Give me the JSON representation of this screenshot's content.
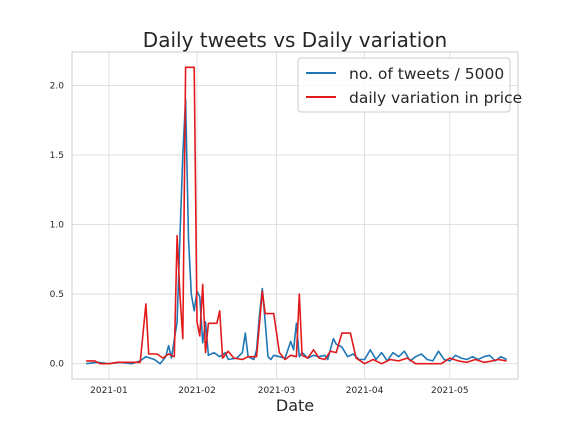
{
  "chart_data": {
    "type": "line",
    "title": "Daily tweets vs Daily variation",
    "xlabel": "Date",
    "ylabel": "",
    "x_tick_labels": [
      "2021-01",
      "2021-02",
      "2021-03",
      "2021-04",
      "2021-05"
    ],
    "x_tick_dates": [
      "2021-01-01",
      "2021-02-01",
      "2021-03-01",
      "2021-04-01",
      "2021-05-01"
    ],
    "y_tick_values": [
      0.0,
      0.5,
      1.0,
      1.5,
      2.0
    ],
    "y_tick_labels": [
      "0.0",
      "0.5",
      "1.0",
      "1.5",
      "2.0"
    ],
    "xlim": [
      "2020-12-19",
      "2021-05-25"
    ],
    "ylim": [
      -0.11,
      2.24
    ],
    "grid": true,
    "legend_position": "top-right",
    "series": [
      {
        "name": "no. of tweets / 5000",
        "color": "#1f77b4",
        "points": [
          [
            "2020-12-24",
            0.0
          ],
          [
            "2020-12-28",
            0.01
          ],
          [
            "2021-01-01",
            0.0
          ],
          [
            "2021-01-05",
            0.01
          ],
          [
            "2021-01-09",
            0.0
          ],
          [
            "2021-01-12",
            0.02
          ],
          [
            "2021-01-14",
            0.05
          ],
          [
            "2021-01-17",
            0.03
          ],
          [
            "2021-01-19",
            0.0
          ],
          [
            "2021-01-21",
            0.05
          ],
          [
            "2021-01-22",
            0.13
          ],
          [
            "2021-01-23",
            0.04
          ],
          [
            "2021-01-25",
            0.3
          ],
          [
            "2021-01-26",
            0.9
          ],
          [
            "2021-01-27",
            1.5
          ],
          [
            "2021-01-28",
            1.9
          ],
          [
            "2021-01-29",
            0.9
          ],
          [
            "2021-01-30",
            0.5
          ],
          [
            "2021-01-31",
            0.38
          ],
          [
            "2021-02-01",
            0.52
          ],
          [
            "2021-02-02",
            0.48
          ],
          [
            "2021-02-03",
            0.15
          ],
          [
            "2021-02-04",
            0.3
          ],
          [
            "2021-02-05",
            0.06
          ],
          [
            "2021-02-07",
            0.08
          ],
          [
            "2021-02-09",
            0.05
          ],
          [
            "2021-02-11",
            0.08
          ],
          [
            "2021-02-12",
            0.03
          ],
          [
            "2021-02-15",
            0.04
          ],
          [
            "2021-02-17",
            0.08
          ],
          [
            "2021-02-18",
            0.22
          ],
          [
            "2021-02-19",
            0.05
          ],
          [
            "2021-02-21",
            0.03
          ],
          [
            "2021-02-22",
            0.1
          ],
          [
            "2021-02-23",
            0.35
          ],
          [
            "2021-02-24",
            0.54
          ],
          [
            "2021-02-25",
            0.3
          ],
          [
            "2021-02-26",
            0.05
          ],
          [
            "2021-02-27",
            0.03
          ],
          [
            "2021-02-28",
            0.06
          ],
          [
            "2021-03-02",
            0.05
          ],
          [
            "2021-03-04",
            0.04
          ],
          [
            "2021-03-06",
            0.16
          ],
          [
            "2021-03-07",
            0.1
          ],
          [
            "2021-03-08",
            0.29
          ],
          [
            "2021-03-09",
            0.05
          ],
          [
            "2021-03-10",
            0.08
          ],
          [
            "2021-03-12",
            0.04
          ],
          [
            "2021-03-14",
            0.06
          ],
          [
            "2021-03-16",
            0.05
          ],
          [
            "2021-03-18",
            0.06
          ],
          [
            "2021-03-19",
            0.03
          ],
          [
            "2021-03-21",
            0.18
          ],
          [
            "2021-03-22",
            0.14
          ],
          [
            "2021-03-24",
            0.12
          ],
          [
            "2021-03-26",
            0.05
          ],
          [
            "2021-03-28",
            0.07
          ],
          [
            "2021-03-30",
            0.03
          ],
          [
            "2021-04-01",
            0.03
          ],
          [
            "2021-04-03",
            0.1
          ],
          [
            "2021-04-05",
            0.03
          ],
          [
            "2021-04-07",
            0.08
          ],
          [
            "2021-04-09",
            0.02
          ],
          [
            "2021-04-11",
            0.08
          ],
          [
            "2021-04-13",
            0.05
          ],
          [
            "2021-04-15",
            0.09
          ],
          [
            "2021-04-17",
            0.02
          ],
          [
            "2021-04-19",
            0.05
          ],
          [
            "2021-04-21",
            0.07
          ],
          [
            "2021-04-23",
            0.03
          ],
          [
            "2021-04-25",
            0.02
          ],
          [
            "2021-04-27",
            0.09
          ],
          [
            "2021-04-29",
            0.03
          ],
          [
            "2021-05-01",
            0.02
          ],
          [
            "2021-05-03",
            0.06
          ],
          [
            "2021-05-05",
            0.04
          ],
          [
            "2021-05-07",
            0.03
          ],
          [
            "2021-05-09",
            0.05
          ],
          [
            "2021-05-11",
            0.03
          ],
          [
            "2021-05-13",
            0.05
          ],
          [
            "2021-05-15",
            0.06
          ],
          [
            "2021-05-17",
            0.02
          ],
          [
            "2021-05-19",
            0.05
          ],
          [
            "2021-05-21",
            0.03
          ]
        ]
      },
      {
        "name": "daily variation in price",
        "color": "#e31a1c",
        "points": [
          [
            "2020-12-24",
            0.02
          ],
          [
            "2020-12-27",
            0.02
          ],
          [
            "2020-12-29",
            0.0
          ],
          [
            "2021-01-01",
            0.0
          ],
          [
            "2021-01-04",
            0.01
          ],
          [
            "2021-01-07",
            0.01
          ],
          [
            "2021-01-10",
            0.01
          ],
          [
            "2021-01-12",
            0.01
          ],
          [
            "2021-01-14",
            0.43
          ],
          [
            "2021-01-15",
            0.07
          ],
          [
            "2021-01-18",
            0.07
          ],
          [
            "2021-01-20",
            0.04
          ],
          [
            "2021-01-22",
            0.07
          ],
          [
            "2021-01-24",
            0.05
          ],
          [
            "2021-01-25",
            0.92
          ],
          [
            "2021-01-26",
            0.5
          ],
          [
            "2021-01-27",
            0.18
          ],
          [
            "2021-01-28",
            2.13
          ],
          [
            "2021-01-31",
            2.13
          ],
          [
            "2021-02-01",
            0.3
          ],
          [
            "2021-02-02",
            0.2
          ],
          [
            "2021-02-03",
            0.57
          ],
          [
            "2021-02-04",
            0.08
          ],
          [
            "2021-02-05",
            0.29
          ],
          [
            "2021-02-08",
            0.29
          ],
          [
            "2021-02-09",
            0.38
          ],
          [
            "2021-02-10",
            0.04
          ],
          [
            "2021-02-12",
            0.09
          ],
          [
            "2021-02-14",
            0.04
          ],
          [
            "2021-02-17",
            0.03
          ],
          [
            "2021-02-19",
            0.05
          ],
          [
            "2021-02-22",
            0.05
          ],
          [
            "2021-02-24",
            0.52
          ],
          [
            "2021-02-25",
            0.36
          ],
          [
            "2021-02-28",
            0.36
          ],
          [
            "2021-03-02",
            0.08
          ],
          [
            "2021-03-04",
            0.03
          ],
          [
            "2021-03-06",
            0.06
          ],
          [
            "2021-03-08",
            0.05
          ],
          [
            "2021-03-09",
            0.5
          ],
          [
            "2021-03-10",
            0.06
          ],
          [
            "2021-03-12",
            0.04
          ],
          [
            "2021-03-14",
            0.1
          ],
          [
            "2021-03-16",
            0.04
          ],
          [
            "2021-03-18",
            0.03
          ],
          [
            "2021-03-20",
            0.09
          ],
          [
            "2021-03-22",
            0.08
          ],
          [
            "2021-03-24",
            0.22
          ],
          [
            "2021-03-27",
            0.22
          ],
          [
            "2021-03-29",
            0.04
          ],
          [
            "2021-04-01",
            0.0
          ],
          [
            "2021-04-04",
            0.03
          ],
          [
            "2021-04-07",
            0.0
          ],
          [
            "2021-04-10",
            0.03
          ],
          [
            "2021-04-13",
            0.02
          ],
          [
            "2021-04-16",
            0.04
          ],
          [
            "2021-04-19",
            0.0
          ],
          [
            "2021-04-22",
            0.0
          ],
          [
            "2021-04-25",
            0.0
          ],
          [
            "2021-04-28",
            0.0
          ],
          [
            "2021-05-01",
            0.04
          ],
          [
            "2021-05-04",
            0.02
          ],
          [
            "2021-05-07",
            0.01
          ],
          [
            "2021-05-10",
            0.03
          ],
          [
            "2021-05-13",
            0.01
          ],
          [
            "2021-05-16",
            0.02
          ],
          [
            "2021-05-18",
            0.03
          ],
          [
            "2021-05-21",
            0.02
          ]
        ]
      }
    ]
  }
}
